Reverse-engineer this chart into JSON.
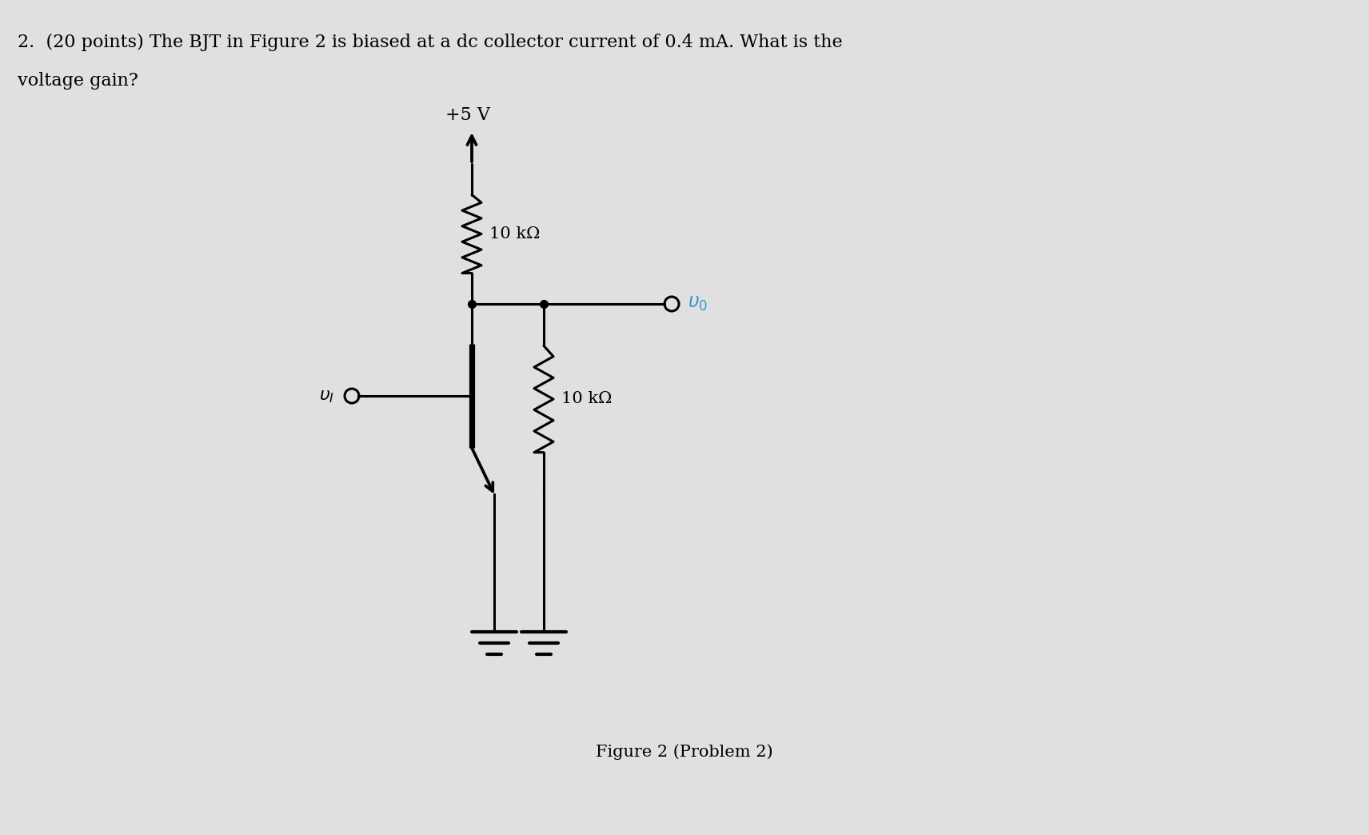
{
  "bg_color": "#e0e0e0",
  "text_color": "#000000",
  "title_line1": "2.  (20 points) The BJT in Figure 2 is biased at a dc collector current of 0.4 mA. What is the",
  "title_line2": "voltage gain?",
  "figure_label": "Figure 2 (Problem 2)",
  "vcc_label": "+5 V",
  "rc_label": "10 kΩ",
  "rl_label": "10 kΩ",
  "vi_label": "v_I",
  "vo_label": "v_0",
  "vo_color": "#3399cc"
}
